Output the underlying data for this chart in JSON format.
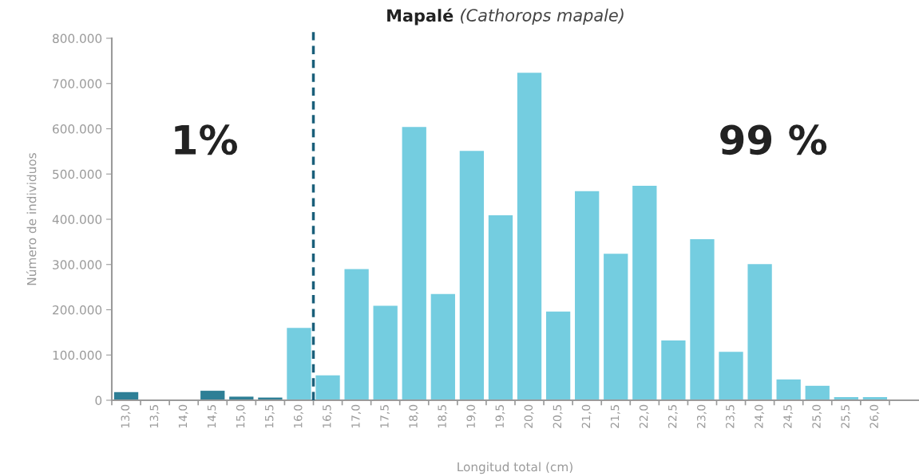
{
  "chart_data": {
    "type": "bar",
    "title": "Mapalé (Cathorops mapale)",
    "xlabel": "Longitud total (cm)",
    "ylabel": "Número de individuos",
    "x": [
      13.0,
      13.5,
      14.0,
      14.5,
      15.0,
      15.5,
      16.0,
      16.5,
      17.0,
      17.5,
      18.0,
      18.5,
      19.0,
      19.5,
      20.0,
      20.5,
      21.0,
      21.5,
      22.0,
      22.5,
      23.0,
      23.5,
      24.0,
      24.5,
      25.0,
      25.5,
      26.0
    ],
    "values": [
      18000,
      0,
      0,
      21000,
      8000,
      6000,
      160000,
      55000,
      290000,
      209000,
      604000,
      235000,
      551000,
      409000,
      724000,
      196000,
      462000,
      324000,
      474000,
      132000,
      356000,
      107000,
      301000,
      46000,
      32000,
      7000,
      7000
    ],
    "colors": [
      "#2e7f96",
      "#2e7f96",
      "#2e7f96",
      "#2e7f96",
      "#2e7f96",
      "#2e7f96",
      "#74cde0",
      "#74cde0",
      "#74cde0",
      "#74cde0",
      "#74cde0",
      "#74cde0",
      "#74cde0",
      "#74cde0",
      "#74cde0",
      "#74cde0",
      "#74cde0",
      "#74cde0",
      "#74cde0",
      "#74cde0",
      "#74cde0",
      "#74cde0",
      "#74cde0",
      "#74cde0",
      "#74cde0",
      "#74cde0",
      "#74cde0"
    ],
    "xlim": [
      12.75,
      26.75
    ],
    "xticks": [
      {
        "value": 13.0,
        "label": "13,0"
      },
      {
        "value": 13.5,
        "label": "13,5"
      },
      {
        "value": 14.0,
        "label": "14,0"
      },
      {
        "value": 14.5,
        "label": "14,5"
      },
      {
        "value": 15.0,
        "label": "15,0"
      },
      {
        "value": 15.5,
        "label": "15,5"
      },
      {
        "value": 16.0,
        "label": "16,0"
      },
      {
        "value": 16.5,
        "label": "16,5"
      },
      {
        "value": 17.0,
        "label": "17,0"
      },
      {
        "value": 17.5,
        "label": "17,5"
      },
      {
        "value": 18.0,
        "label": "18,0"
      },
      {
        "value": 18.5,
        "label": "18,5"
      },
      {
        "value": 19.0,
        "label": "19,0"
      },
      {
        "value": 19.5,
        "label": "19,5"
      },
      {
        "value": 20.0,
        "label": "20,0"
      },
      {
        "value": 20.5,
        "label": "20,5"
      },
      {
        "value": 21.0,
        "label": "21,0"
      },
      {
        "value": 21.5,
        "label": "21,5"
      },
      {
        "value": 22.0,
        "label": "22,0"
      },
      {
        "value": 22.5,
        "label": "22,5"
      },
      {
        "value": 23.0,
        "label": "23,0"
      },
      {
        "value": 23.5,
        "label": "23,5"
      },
      {
        "value": 24.0,
        "label": "24,0"
      },
      {
        "value": 24.5,
        "label": "24,5"
      },
      {
        "value": 25.0,
        "label": "25,0"
      },
      {
        "value": 25.5,
        "label": "25,5"
      },
      {
        "value": 26.0,
        "label": "26,0"
      }
    ],
    "ylim": [
      0,
      800000
    ],
    "yticks": [
      0,
      {
        "value": 100000,
        "label": "100.000"
      },
      {
        "value": 200000,
        "label": "200.000"
      },
      {
        "value": 300000,
        "label": "300.000"
      },
      {
        "value": 400000,
        "label": "400.000"
      },
      {
        "value": 500000,
        "label": "500.000"
      },
      {
        "value": 600000,
        "label": "600.000"
      },
      {
        "value": 700000,
        "label": "700.000"
      },
      {
        "value": 800000,
        "label": "800.000"
      }
    ],
    "ref_lines": [
      {
        "axis": "x",
        "value": 16.25,
        "color": "#1a5f7a",
        "line_style": "dashed"
      }
    ],
    "annotations": [
      "1%",
      "99 %"
    ],
    "grid": false,
    "legend": false
  }
}
